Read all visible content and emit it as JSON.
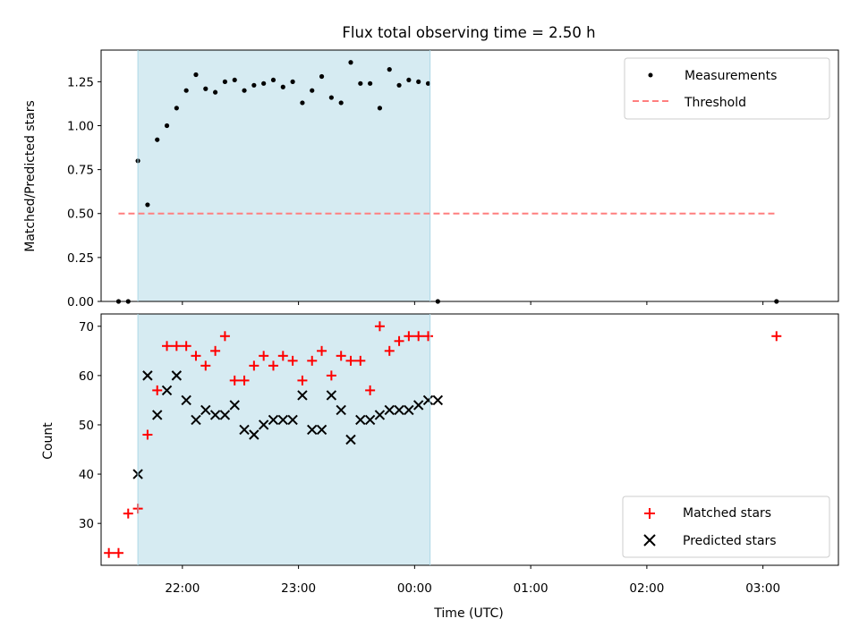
{
  "chart_data": [
    {
      "type": "scatter",
      "title": "Flux total observing time = 2.50 h",
      "ylabel": "Matched/Predicted stars",
      "ylim": [
        0,
        1.43
      ],
      "xlim_hours": [
        21.3,
        27.65
      ],
      "yticks": [
        0.0,
        0.25,
        0.5,
        0.75,
        1.0,
        1.25
      ],
      "ytick_labels": [
        "0.00",
        "0.25",
        "0.50",
        "0.75",
        "1.00",
        "1.25"
      ],
      "shaded_span": [
        "21:37",
        "00:08"
      ],
      "grid": false,
      "legend_position": "upper right",
      "colors": {
        "measurements": "#000000",
        "threshold": "#ff7f7f",
        "span": "#add8e6"
      },
      "series": [
        {
          "name": "Measurements",
          "marker": "dot",
          "x": [
            "21:27",
            "21:32",
            "21:37",
            "21:42",
            "21:47",
            "21:52",
            "21:57",
            "22:02",
            "22:07",
            "22:12",
            "22:17",
            "22:22",
            "22:27",
            "22:32",
            "22:37",
            "22:42",
            "22:47",
            "22:52",
            "22:57",
            "23:02",
            "23:07",
            "23:12",
            "23:17",
            "23:22",
            "23:27",
            "23:32",
            "23:37",
            "23:42",
            "23:47",
            "23:52",
            "23:57",
            "00:02",
            "00:07",
            "00:12",
            "03:07"
          ],
          "y": [
            0.0,
            0.0,
            0.8,
            0.55,
            0.92,
            1.0,
            1.1,
            1.2,
            1.29,
            1.21,
            1.19,
            1.25,
            1.26,
            1.2,
            1.23,
            1.24,
            1.26,
            1.22,
            1.25,
            1.13,
            1.2,
            1.28,
            1.16,
            1.13,
            1.36,
            1.24,
            1.24,
            1.1,
            1.32,
            1.23,
            1.26,
            1.25,
            1.24,
            0.0,
            0.0
          ]
        },
        {
          "name": "Threshold",
          "style": "dashed",
          "x": [
            "21:27",
            "03:07"
          ],
          "y": [
            0.5,
            0.5
          ]
        }
      ]
    },
    {
      "type": "scatter",
      "xlabel": "Time (UTC)",
      "ylabel": "Count",
      "ylim": [
        21.5,
        72.5
      ],
      "xlim_hours": [
        21.3,
        27.65
      ],
      "yticks": [
        30,
        40,
        50,
        60,
        70
      ],
      "ytick_labels": [
        "30",
        "40",
        "50",
        "60",
        "70"
      ],
      "xticks": [
        "22:00",
        "23:00",
        "00:00",
        "01:00",
        "02:00",
        "03:00"
      ],
      "shaded_span": [
        "21:37",
        "00:08"
      ],
      "grid": false,
      "legend_position": "lower right",
      "colors": {
        "matched": "#ff0000",
        "predicted": "#000000",
        "span": "#add8e6"
      },
      "series": [
        {
          "name": "Matched stars",
          "marker": "plus",
          "x": [
            "21:22",
            "21:27",
            "21:32",
            "21:37",
            "21:42",
            "21:47",
            "21:52",
            "21:57",
            "22:02",
            "22:07",
            "22:12",
            "22:17",
            "22:22",
            "22:27",
            "22:32",
            "22:37",
            "22:42",
            "22:47",
            "22:52",
            "22:57",
            "23:02",
            "23:07",
            "23:12",
            "23:17",
            "23:22",
            "23:27",
            "23:32",
            "23:37",
            "23:42",
            "23:47",
            "23:52",
            "23:57",
            "00:02",
            "00:07",
            "03:07"
          ],
          "y": [
            24,
            24,
            32,
            33,
            48,
            57,
            66,
            66,
            66,
            64,
            62,
            65,
            68,
            59,
            59,
            62,
            64,
            62,
            64,
            63,
            59,
            63,
            65,
            60,
            64,
            63,
            63,
            57,
            70,
            65,
            67,
            68,
            68,
            68,
            68
          ]
        },
        {
          "name": "Predicted stars",
          "marker": "x",
          "x": [
            "21:37",
            "21:42",
            "21:47",
            "21:52",
            "21:57",
            "22:02",
            "22:07",
            "22:12",
            "22:17",
            "22:22",
            "22:27",
            "22:32",
            "22:37",
            "22:42",
            "22:47",
            "22:52",
            "22:57",
            "23:02",
            "23:07",
            "23:12",
            "23:17",
            "23:22",
            "23:27",
            "23:32",
            "23:37",
            "23:42",
            "23:47",
            "23:52",
            "23:57",
            "00:02",
            "00:07",
            "00:12"
          ],
          "y": [
            40,
            60,
            52,
            57,
            60,
            55,
            51,
            53,
            52,
            52,
            54,
            49,
            48,
            50,
            51,
            51,
            51,
            56,
            49,
            49,
            56,
            53,
            47,
            51,
            51,
            52,
            53,
            53,
            53,
            54,
            55,
            55
          ]
        }
      ]
    }
  ]
}
